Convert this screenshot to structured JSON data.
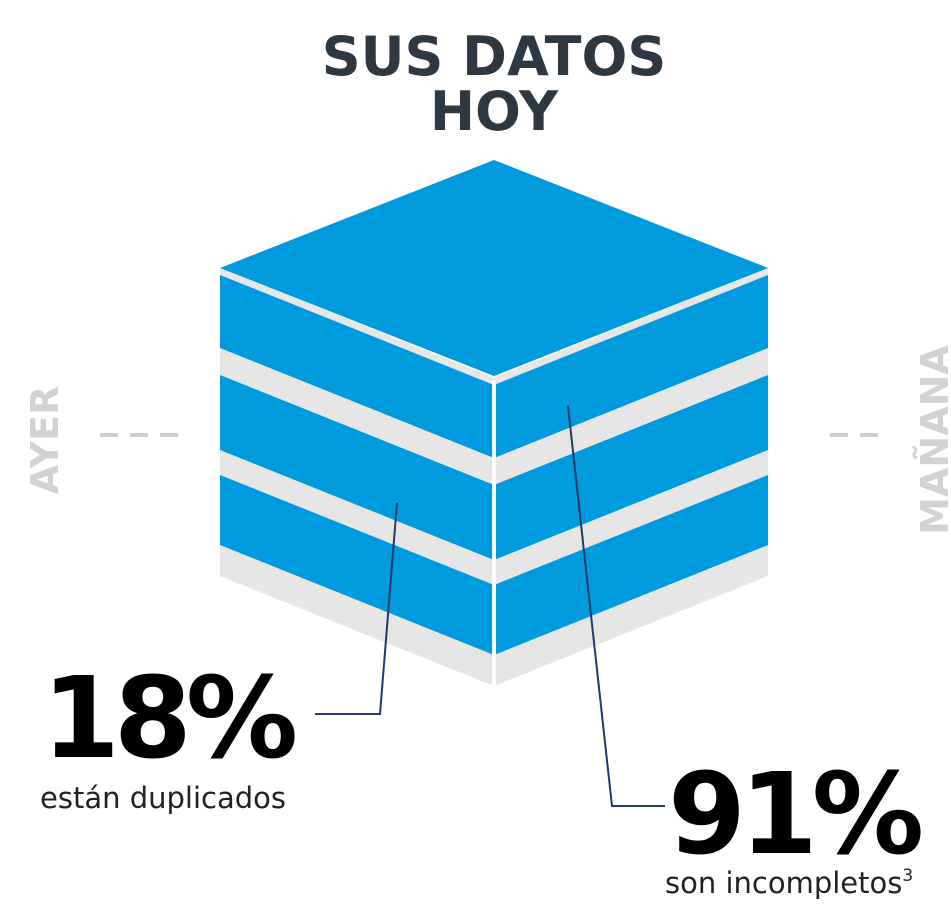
{
  "title": {
    "lines": [
      "SUS DATOS",
      "HOY"
    ]
  },
  "side_labels": {
    "left": "AYER",
    "right": "MAÑANA"
  },
  "stats": [
    {
      "value": "18%",
      "caption": "están duplicados"
    },
    {
      "value": "91%",
      "caption": "son incompletos",
      "footnote": "3"
    }
  ]
}
